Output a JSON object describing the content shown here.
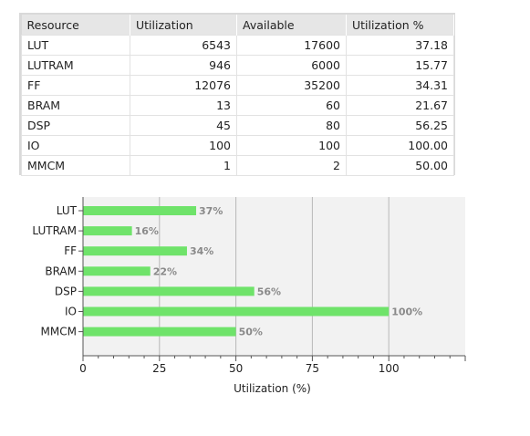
{
  "table": {
    "headers": [
      "Resource",
      "Utilization",
      "Available",
      "Utilization %"
    ],
    "rows": [
      [
        "LUT",
        "6543",
        "17600",
        "37.18"
      ],
      [
        "LUTRAM",
        "946",
        "6000",
        "15.77"
      ],
      [
        "FF",
        "12076",
        "35200",
        "34.31"
      ],
      [
        "BRAM",
        "13",
        "60",
        "21.67"
      ],
      [
        "DSP",
        "45",
        "80",
        "56.25"
      ],
      [
        "IO",
        "100",
        "100",
        "100.00"
      ],
      [
        "MMCM",
        "1",
        "2",
        "50.00"
      ]
    ]
  },
  "chart_data": {
    "type": "bar",
    "orientation": "horizontal",
    "categories": [
      "LUT",
      "LUTRAM",
      "FF",
      "BRAM",
      "DSP",
      "IO",
      "MMCM"
    ],
    "values": [
      37,
      16,
      34,
      22,
      56,
      100,
      50
    ],
    "value_labels": [
      "37%",
      "16%",
      "34%",
      "22%",
      "56%",
      "100%",
      "50%"
    ],
    "xlabel": "Utilization (%)",
    "ylabel": "",
    "xticks": [
      0,
      25,
      50,
      75,
      100
    ],
    "xlim": [
      0,
      125
    ],
    "grid": "vertical",
    "bar_color": "#6fe36a",
    "plot_background": "#f2f2f2"
  }
}
